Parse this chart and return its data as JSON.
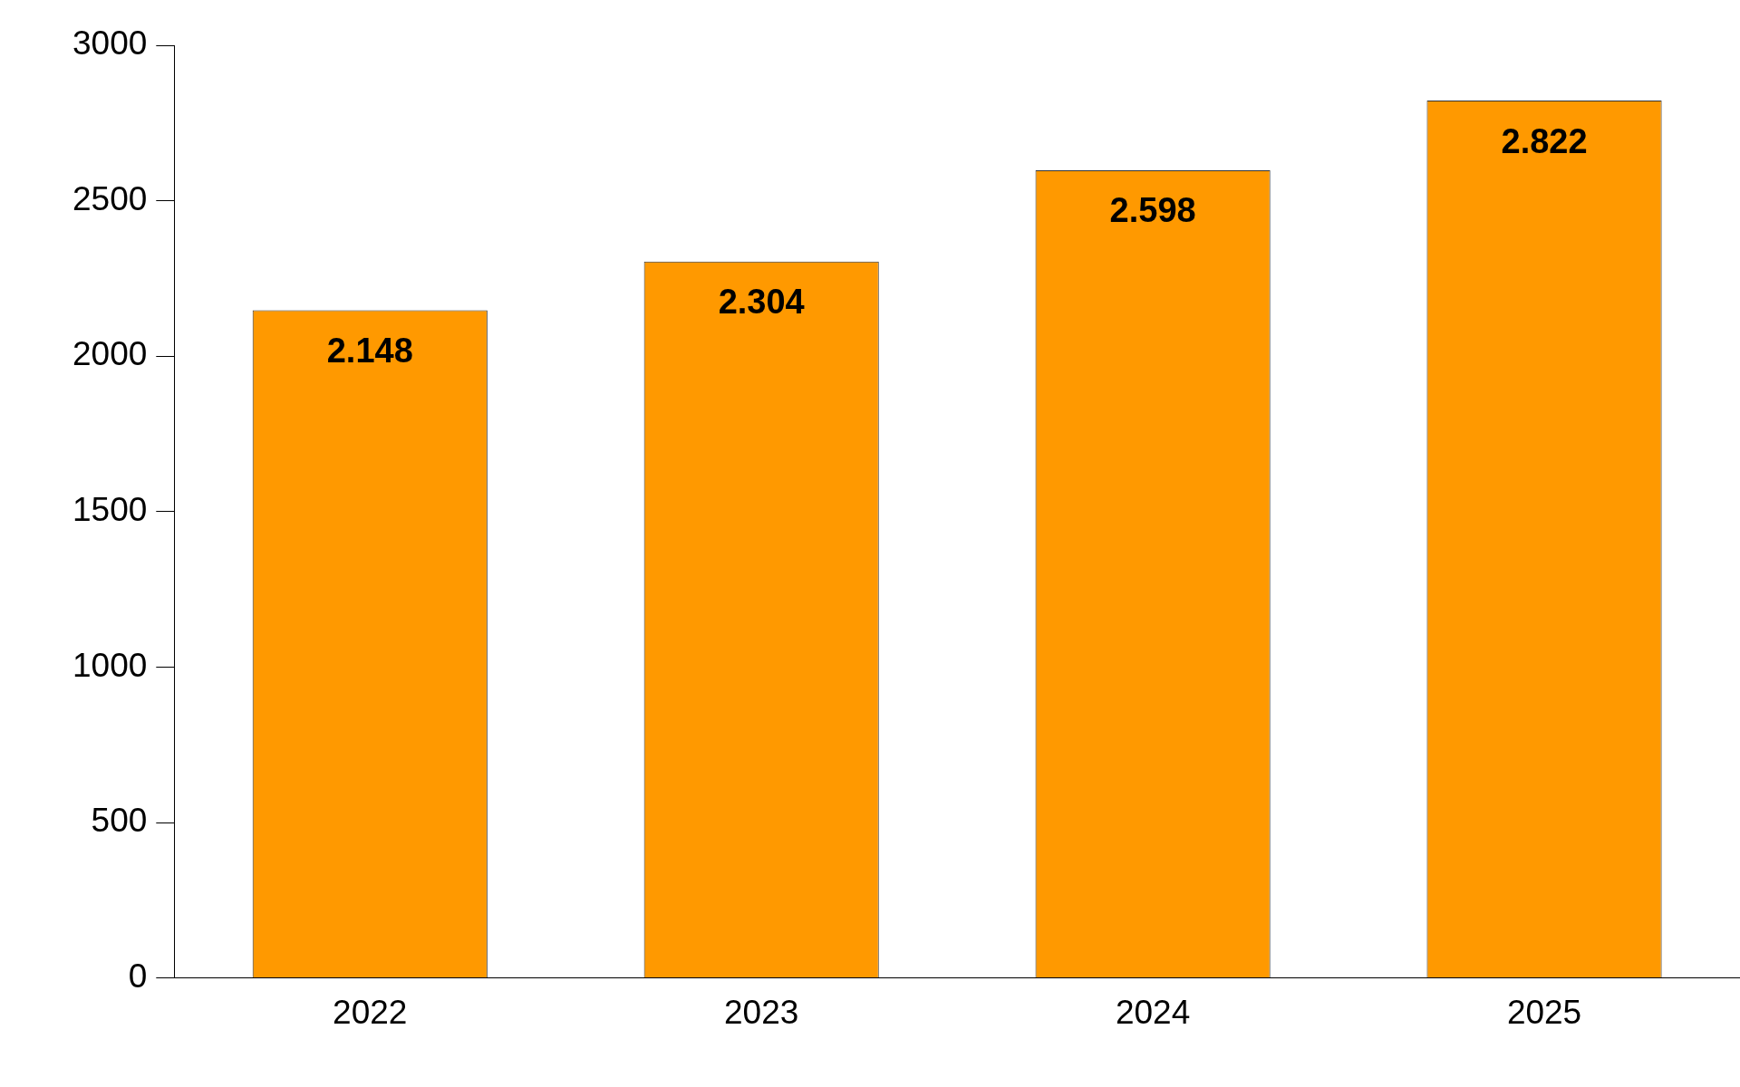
{
  "chart_data": {
    "type": "bar",
    "categories": [
      "2022",
      "2023",
      "2024",
      "2025"
    ],
    "values": [
      2148,
      2304,
      2598,
      2822
    ],
    "value_labels": [
      "2.148",
      "2.304",
      "2.598",
      "2.822"
    ],
    "color": "#ff9900",
    "ylim": [
      0,
      3000
    ],
    "yticks": [
      0,
      500,
      1000,
      1500,
      2000,
      2500,
      3000
    ],
    "grid": false,
    "legend": false
  }
}
